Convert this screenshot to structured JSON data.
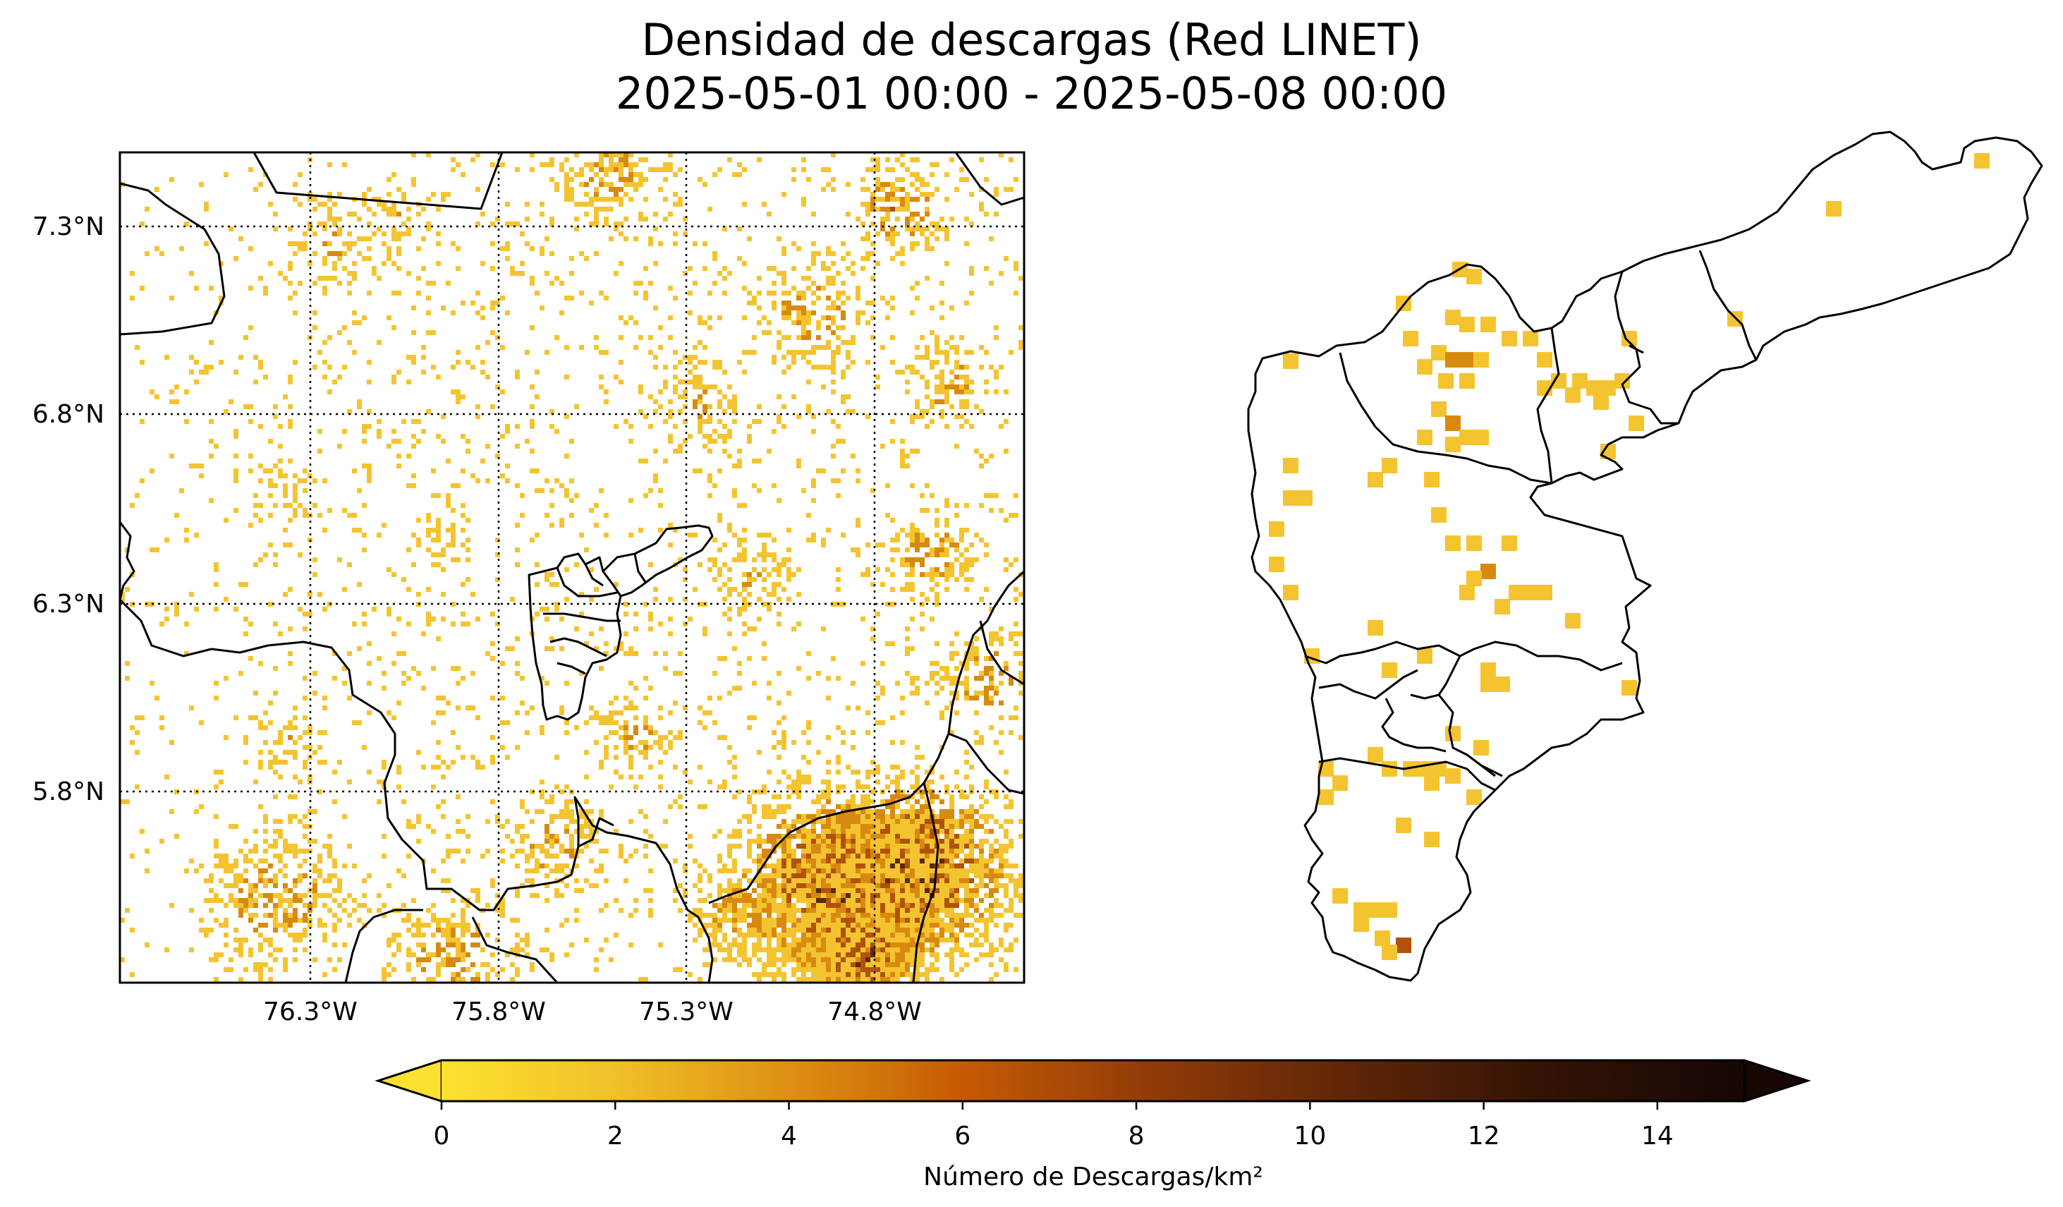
{
  "title_line1": "Densidad de descargas (Red LINET)",
  "title_line2": "2025-05-01 00:00  -  2025-05-08 00:00",
  "left_map": {
    "lat_labels": [
      "7.3°N",
      "6.8°N",
      "6.3°N",
      "5.8°N"
    ],
    "lon_labels": [
      "76.3°W",
      "75.8°W",
      "75.3°W",
      "74.8°W"
    ],
    "gridlines": "dotted"
  },
  "right_map": {
    "description_shown": "subregion cells"
  },
  "colorbar": {
    "label": "Número de Descargas/km²",
    "ticks": [
      "0",
      "2",
      "4",
      "6",
      "8",
      "10",
      "12",
      "14"
    ],
    "min": 0,
    "max": 15,
    "extend": "both",
    "colors": [
      "#fde130",
      "#f1c12a",
      "#dd8e13",
      "#c55a04",
      "#8f3a08",
      "#5e2507",
      "#321305",
      "#160705"
    ]
  },
  "colors": {
    "low": "#f4c430",
    "mid": "#d88a10",
    "high": "#b0520a",
    "very_high": "#5a2a05",
    "border": "#000000"
  }
}
